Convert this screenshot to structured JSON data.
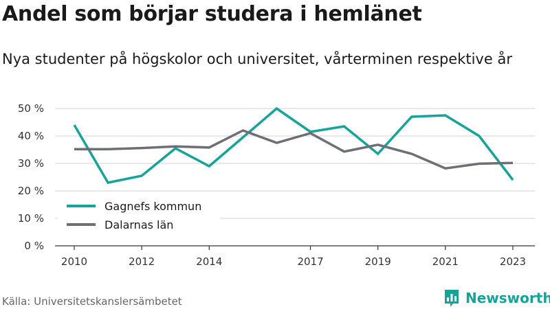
{
  "chart_data": {
    "type": "line",
    "title": "Andel som börjar studera i hemlänet",
    "subtitle": "Nya studenter på högskolor och universitet, vårterminen respektive år",
    "xlabel": "",
    "ylabel": "",
    "x": [
      2010,
      2011,
      2012,
      2013,
      2014,
      2015,
      2016,
      2017,
      2018,
      2019,
      2020,
      2021,
      2022,
      2023
    ],
    "x_ticks": [
      "2010",
      "2012",
      "2014",
      "2017",
      "2019",
      "2021",
      "2023"
    ],
    "x_tick_values": [
      2010,
      2012,
      2014,
      2017,
      2019,
      2021,
      2023
    ],
    "y_ticks": [
      "0 %",
      "10 %",
      "20 %",
      "30 %",
      "40 %",
      "50 %"
    ],
    "y_tick_values": [
      0,
      10,
      20,
      30,
      40,
      50
    ],
    "ylim": [
      0,
      50
    ],
    "xlim": [
      2010,
      2023
    ],
    "grid": true,
    "legend_position": "bottom-left",
    "series": [
      {
        "name": "Gagnefs kommun",
        "color": "#15a39a",
        "values": [
          44,
          23,
          25.5,
          35.5,
          29,
          39.5,
          50,
          41.5,
          43.5,
          33.5,
          47,
          47.5,
          40,
          24
        ]
      },
      {
        "name": "Dalarnas län",
        "color": "#6e6e76",
        "values": [
          35.2,
          35.2,
          35.6,
          36.2,
          35.8,
          42,
          37.5,
          41,
          34.3,
          36.8,
          33.5,
          28.2,
          29.9,
          30.2
        ]
      }
    ]
  },
  "source": "Källa: Universitetskanslersämbetet",
  "brand": {
    "name": "Newsworthy",
    "icon": "bar-chart-logo-icon",
    "color": "#15a39a"
  }
}
